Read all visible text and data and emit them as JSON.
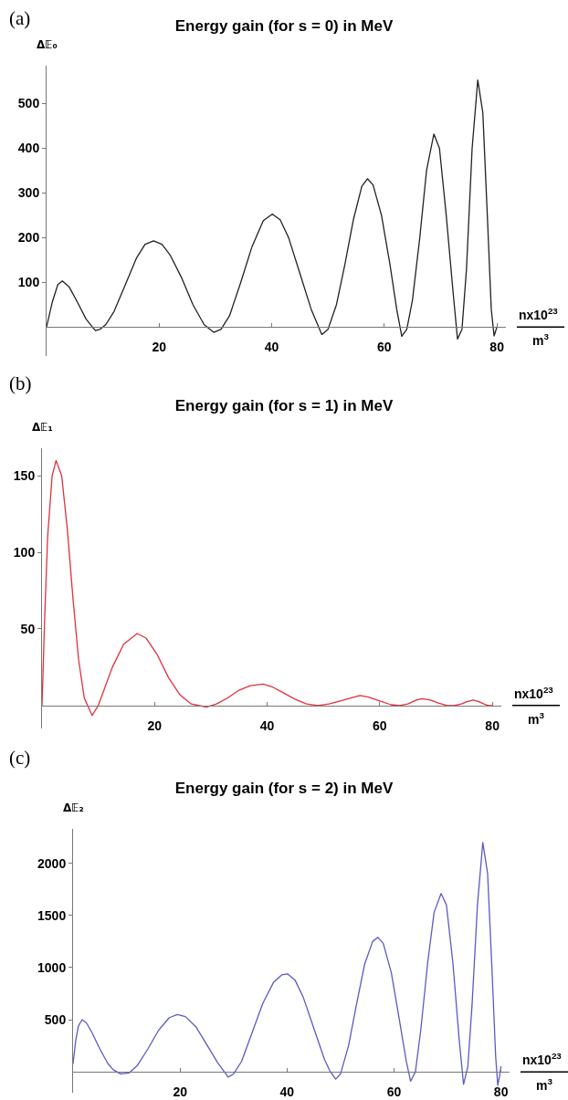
{
  "chart_data": [
    {
      "type": "line",
      "title": "Energy gain (for s = 0) in MeV",
      "ylabel": "Δ𝔼₀",
      "xlabel": "nx10$^{23}$",
      "annotations": [
        "(a)",
        "m$^{3}$"
      ],
      "x": [
        0,
        1,
        2,
        2.8,
        4,
        5.5,
        7,
        8,
        8.7,
        9.5,
        10.5,
        12,
        14,
        16,
        17.5,
        19,
        20.5,
        22,
        24,
        26,
        28,
        29.7,
        31,
        32.5,
        34.5,
        36.5,
        38.5,
        40.1,
        41.5,
        43,
        45,
        47,
        48.9,
        50,
        51.5,
        53,
        54.5,
        56,
        57,
        58,
        59.5,
        61,
        62.2,
        63.1,
        64,
        65,
        66.3,
        67.5,
        68.8,
        69.8,
        71,
        72.2,
        73,
        73.8,
        74.6,
        75.6,
        76.6,
        77.5,
        78.3,
        79,
        79.5,
        80
      ],
      "series": [
        {
          "color": "#222222",
          "values": [
            0,
            55,
            95,
            103,
            90,
            55,
            18,
            2,
            -8,
            -5,
            5,
            35,
            95,
            155,
            185,
            193,
            185,
            160,
            110,
            50,
            5,
            -12,
            -5,
            25,
            100,
            180,
            238,
            253,
            240,
            200,
            120,
            40,
            -17,
            -5,
            50,
            140,
            240,
            315,
            332,
            318,
            250,
            140,
            40,
            -21,
            -5,
            60,
            200,
            350,
            432,
            400,
            250,
            80,
            -27,
            -5,
            130,
            400,
            553,
            480,
            250,
            40,
            -20,
            0
          ]
        }
      ],
      "xlim": [
        0,
        81.6
      ],
      "ylim": [
        -65,
        585
      ],
      "xticks": [
        20,
        40,
        60,
        80
      ],
      "yticks": [
        100,
        200,
        300,
        400,
        500
      ]
    },
    {
      "type": "line",
      "title": "Energy gain (for s = 1) in MeV",
      "ylabel": "Δ𝔼₁",
      "xlabel": "nx10$^{23}$",
      "annotations": [
        "(b)",
        "m$^{3}$"
      ],
      "x": [
        0,
        0.5,
        1,
        1.8,
        2.5,
        3.5,
        4.5,
        5.5,
        6.5,
        7.5,
        8.9,
        10,
        11,
        12.5,
        14.5,
        16.9,
        18.5,
        20.5,
        22.5,
        24.5,
        26.5,
        29.2,
        31,
        33,
        35,
        37,
        39.3,
        41,
        43,
        45,
        47,
        49,
        51,
        53,
        55,
        56.5,
        58,
        60,
        62,
        63.5,
        65,
        66.5,
        67.5,
        69,
        70.5,
        72,
        73.2,
        74.5,
        75.5,
        76.6,
        77.6,
        78.5,
        79.3,
        80
      ],
      "series": [
        {
          "color": "#e0303c",
          "values": [
            0,
            60,
            110,
            150,
            160,
            150,
            115,
            70,
            30,
            5,
            -6.5,
            0,
            10,
            25,
            40,
            47,
            44,
            33,
            18,
            7,
            1,
            -1,
            1,
            5,
            10,
            13,
            14,
            12,
            8,
            4,
            1,
            0,
            1,
            3,
            5,
            6.5,
            5.5,
            3,
            0.5,
            0,
            1,
            3.5,
            4.5,
            3.5,
            1.5,
            0,
            0,
            1,
            2.5,
            3.5,
            2.5,
            1,
            0,
            0
          ]
        }
      ],
      "xlim": [
        0,
        81.6
      ],
      "ylim": [
        -15,
        168
      ],
      "xticks": [
        20,
        40,
        60,
        80
      ],
      "yticks": [
        50,
        100,
        150
      ]
    },
    {
      "type": "line",
      "title": "Energy gain (for s = 2) in MeV",
      "ylabel": "Δ𝔼₂",
      "xlabel": "nx10$^{23}$",
      "annotations": [
        "(c)",
        "m$^{3}$"
      ],
      "x": [
        0,
        0.5,
        1,
        1.7,
        2.5,
        3.5,
        5,
        6.5,
        7.5,
        8.9,
        10.5,
        12,
        14,
        16,
        18,
        19.5,
        21,
        23,
        25,
        27,
        28,
        29,
        30,
        31.5,
        33.5,
        35.5,
        37.5,
        39,
        40.1,
        41.5,
        43,
        45,
        47,
        48,
        49.1,
        50,
        51.5,
        53,
        54.5,
        56,
        57,
        58,
        59.5,
        61,
        62.3,
        63.1,
        64,
        65,
        66.3,
        67.5,
        68.8,
        69.8,
        71,
        72.2,
        73,
        73.8,
        74.6,
        75.6,
        76.6,
        77.5,
        78.3,
        79,
        79.4,
        79.8,
        80
      ],
      "series": [
        {
          "color": "#5a5ac8",
          "values": [
            80,
            300,
            440,
            500,
            470,
            380,
            220,
            80,
            20,
            -20,
            -10,
            60,
            220,
            400,
            520,
            550,
            530,
            430,
            260,
            90,
            20,
            -50,
            -20,
            100,
            380,
            660,
            860,
            930,
            940,
            880,
            720,
            420,
            120,
            10,
            -70,
            -20,
            250,
            650,
            1030,
            1250,
            1290,
            1230,
            950,
            500,
            100,
            -90,
            0,
            400,
            1050,
            1530,
            1710,
            1600,
            1050,
            300,
            -120,
            50,
            650,
            1600,
            2200,
            1900,
            1000,
            150,
            -130,
            -20,
            50
          ]
        }
      ],
      "xlim": [
        0,
        81.6
      ],
      "ylim": [
        -200,
        2330
      ],
      "xticks": [
        20,
        40,
        60,
        80
      ],
      "yticks": [
        500,
        1000,
        1500,
        2000
      ]
    }
  ]
}
